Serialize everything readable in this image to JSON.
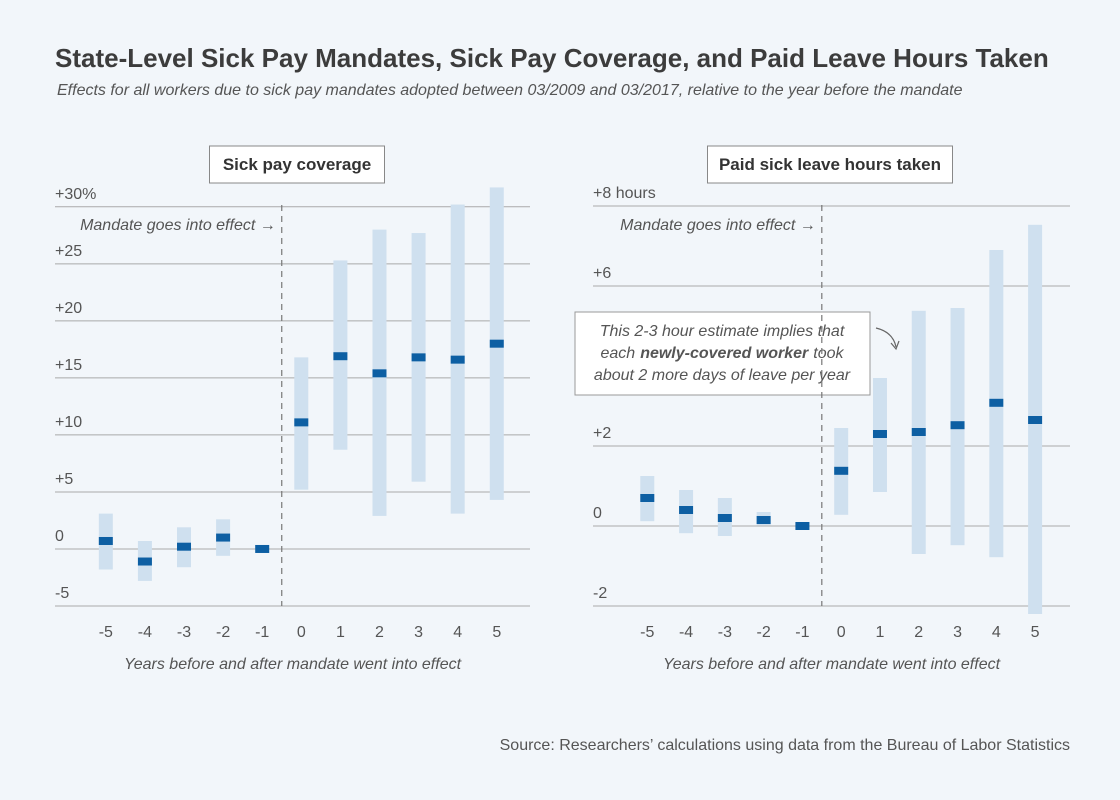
{
  "title": "State-Level Sick Pay Mandates, Sick Pay Coverage, and Paid Leave Hours Taken",
  "subtitle": "Effects for all workers due to sick pay mandates adopted between 03/2009 and 03/2017, relative to the year before the mandate",
  "source": "Source: Researchers’ calculations using data from the Bureau of Labor Statistics",
  "chart_data": [
    {
      "type": "errorbar",
      "title": "Sick pay coverage",
      "xlabel": "Years before and after mandate went into effect",
      "annotation": "Mandate goes into effect →",
      "x": [
        -5,
        -4,
        -3,
        -2,
        -1,
        0,
        1,
        2,
        3,
        4,
        5
      ],
      "values": [
        0.7,
        -1.1,
        0.2,
        1.0,
        0,
        11.1,
        16.9,
        15.4,
        16.8,
        16.6,
        18.0
      ],
      "lower": [
        -1.8,
        -2.8,
        -1.6,
        -0.6,
        0,
        5.2,
        8.7,
        2.9,
        5.9,
        3.1,
        4.3
      ],
      "upper": [
        3.1,
        0.7,
        1.9,
        2.6,
        0,
        16.8,
        25.3,
        28.0,
        27.7,
        30.2,
        31.7
      ],
      "color": "#cfe0ef",
      "marker_color": "#0d5fa3",
      "xlim": [
        -6.3,
        5.85
      ],
      "ylim": [
        -5,
        32
      ],
      "yticks": [
        {
          "value": 30,
          "label": "+30%"
        },
        {
          "value": 25,
          "label": "+25"
        },
        {
          "value": 20,
          "label": "+20"
        },
        {
          "value": 15,
          "label": "+15"
        },
        {
          "value": 10,
          "label": "+10"
        },
        {
          "value": 5,
          "label": "+5"
        },
        0,
        -5
      ],
      "grid": true
    },
    {
      "type": "errorbar",
      "title": "Paid sick leave hours taken",
      "xlabel": "Years before and after mandate went into effect",
      "annotation": "Mandate goes into effect →",
      "callout": [
        "This 2-3 hour estimate implies that",
        "each",
        "newly-covered worker",
        "took",
        "about 2 more days of leave per year"
      ],
      "x": [
        -5,
        -4,
        -3,
        -2,
        -1,
        0,
        1,
        2,
        3,
        4,
        5
      ],
      "values": [
        0.7,
        0.4,
        0.2,
        0.15,
        0,
        1.38,
        2.3,
        2.35,
        2.52,
        3.08,
        2.65
      ],
      "lower": [
        0.12,
        -0.18,
        -0.25,
        0.02,
        0,
        0.28,
        0.85,
        -0.7,
        -0.48,
        -0.78,
        -2.2
      ],
      "upper": [
        1.25,
        0.9,
        0.7,
        0.35,
        0,
        2.45,
        3.7,
        5.38,
        5.45,
        6.9,
        7.53
      ],
      "color": "#cfe0ef",
      "marker_color": "#0d5fa3",
      "xlim": [
        -6.4,
        5.9
      ],
      "ylim": [
        -2.3,
        8.3
      ],
      "yticks": [
        {
          "value": 8,
          "label": "+8 hours"
        },
        {
          "value": 6,
          "label": "+6"
        },
        {
          "value": 2,
          "label": "+2"
        },
        0,
        -2
      ],
      "grid": true
    }
  ]
}
